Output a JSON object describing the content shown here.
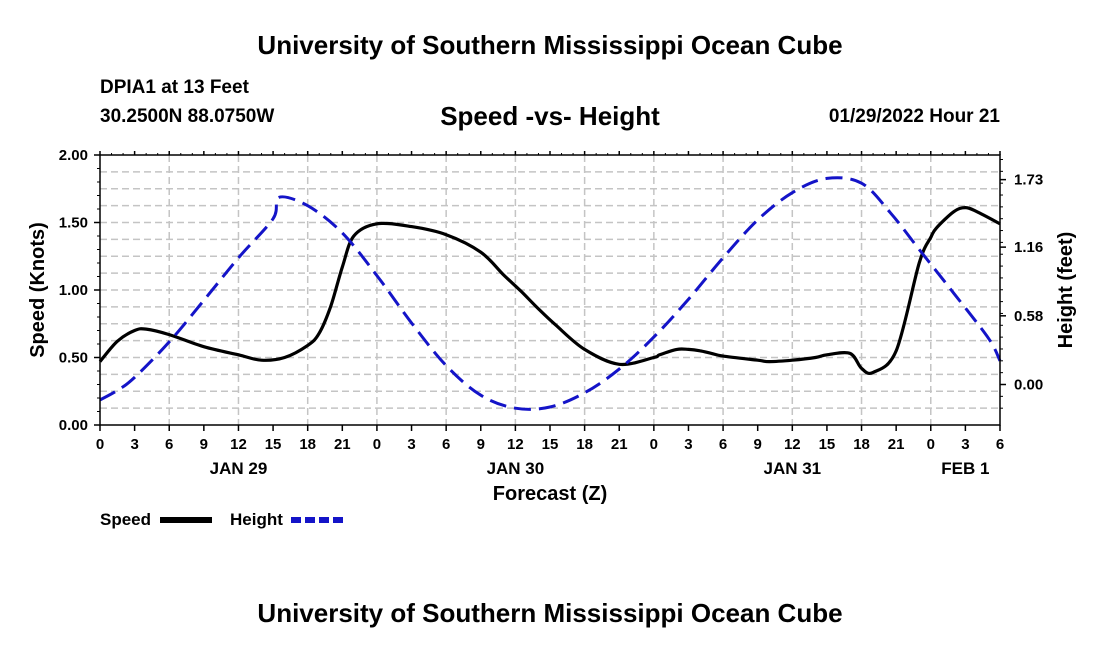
{
  "header": {
    "title": "University of Southern Mississippi Ocean Cube",
    "station": "DPIA1 at 13 Feet",
    "coords": "30.2500N  88.0750W",
    "subtitle": "Speed -vs- Height",
    "datetime": "01/29/2022 Hour 21"
  },
  "footer": {
    "title": "University of Southern Mississippi Ocean Cube"
  },
  "chart_data": {
    "type": "line",
    "title": "Speed -vs- Height",
    "xlabel": "Forecast (Z)",
    "ylabel": "Speed (Knots)",
    "y2label": "Height (feet)",
    "x_range_hours": [
      0,
      78
    ],
    "x_tick_labels": [
      "0",
      "3",
      "6",
      "9",
      "12",
      "15",
      "18",
      "21",
      "0",
      "3",
      "6",
      "9",
      "12",
      "15",
      "18",
      "21",
      "0",
      "3",
      "6",
      "9",
      "12",
      "15",
      "18",
      "21",
      "0",
      "3",
      "6"
    ],
    "date_labels": [
      {
        "label": "JAN 29",
        "hour": 12
      },
      {
        "label": "JAN 30",
        "hour": 36
      },
      {
        "label": "JAN 31",
        "hour": 60
      },
      {
        "label": "FEB 1",
        "hour": 75
      }
    ],
    "ylim": [
      0,
      2
    ],
    "y_ticks": [
      "0.00",
      "0.50",
      "1.00",
      "1.50",
      "2.00"
    ],
    "y2lim": [
      -0.342,
      1.938
    ],
    "y2_ticks": [
      "0.00",
      "0.58",
      "1.16",
      "1.73"
    ],
    "grid": true,
    "colors": {
      "speed": "#000000",
      "height": "#1414c8",
      "grid": "#c4c4c4"
    },
    "series": [
      {
        "name": "Speed",
        "axis": "left",
        "x": [
          0,
          1.5,
          3,
          4,
          6,
          9,
          12,
          14,
          16,
          18,
          19,
          20,
          21,
          22,
          24,
          27,
          30,
          33,
          35,
          36.5,
          38,
          39.5,
          42,
          45,
          48,
          48.5,
          50,
          51,
          52,
          53,
          54,
          57,
          58,
          60,
          62,
          63,
          65,
          66,
          67,
          69,
          71,
          72,
          72.5,
          74,
          75,
          76,
          78
        ],
        "y": [
          0.47,
          0.62,
          0.7,
          0.71,
          0.67,
          0.58,
          0.52,
          0.48,
          0.5,
          0.59,
          0.68,
          0.88,
          1.17,
          1.4,
          1.49,
          1.47,
          1.41,
          1.28,
          1.11,
          0.99,
          0.86,
          0.74,
          0.56,
          0.45,
          0.5,
          0.52,
          0.56,
          0.56,
          0.55,
          0.53,
          0.51,
          0.48,
          0.47,
          0.48,
          0.5,
          0.52,
          0.53,
          0.42,
          0.39,
          0.55,
          1.2,
          1.39,
          1.46,
          1.58,
          1.61,
          1.58,
          1.49
        ]
      },
      {
        "name": "Height",
        "axis": "right",
        "x": [
          0,
          1.5,
          3,
          6,
          9,
          12,
          15,
          15.5,
          18,
          21,
          24,
          27,
          30,
          33,
          36,
          39,
          42,
          45,
          48,
          51,
          54,
          57,
          60,
          63,
          66,
          68.5,
          71,
          74,
          77,
          78
        ],
        "y": [
          -0.13,
          -0.05,
          0.06,
          0.36,
          0.71,
          1.07,
          1.4,
          1.58,
          1.51,
          1.28,
          0.92,
          0.52,
          0.16,
          -0.09,
          -0.2,
          -0.19,
          -0.07,
          0.13,
          0.4,
          0.72,
          1.07,
          1.39,
          1.62,
          1.74,
          1.7,
          1.45,
          1.14,
          0.77,
          0.39,
          0.2
        ]
      }
    ],
    "legend": {
      "position": "bottom-left",
      "items": [
        {
          "label": "Speed",
          "style": "solid"
        },
        {
          "label": "Height",
          "style": "dashed"
        }
      ]
    }
  }
}
